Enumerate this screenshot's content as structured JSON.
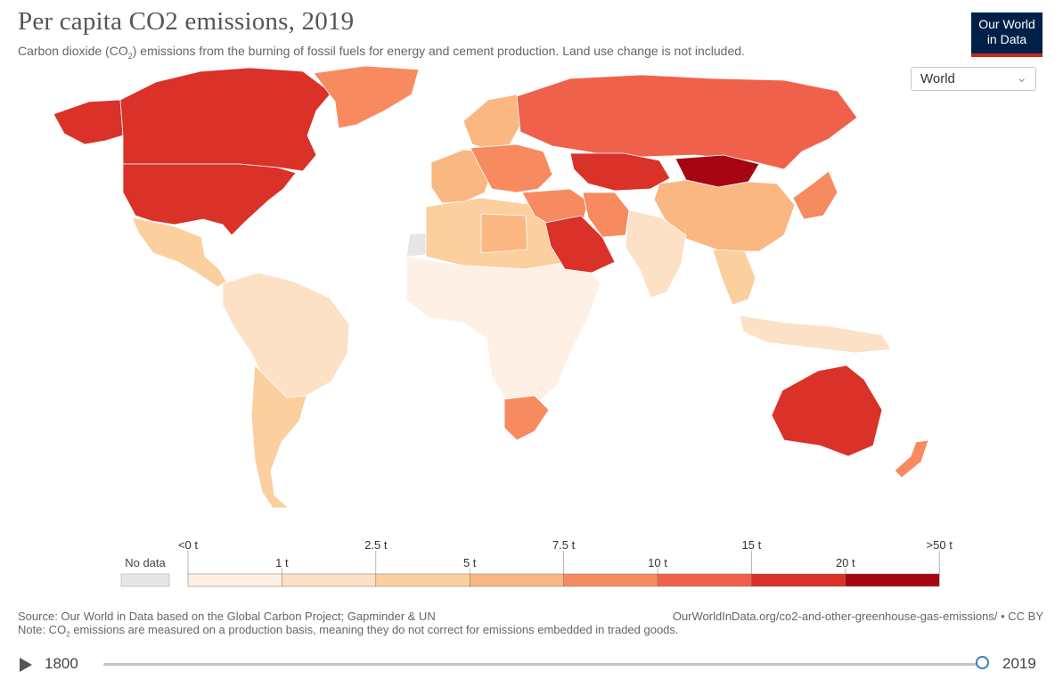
{
  "header": {
    "title": "Per capita CO2 emissions, 2019",
    "subtitle_pre": "Carbon dioxide (CO",
    "subtitle_sub": "2",
    "subtitle_post": ") emissions from the burning of fossil fuels for energy and cement production. Land use change is not included.",
    "logo_line1": "Our World",
    "logo_line2": "in Data",
    "region_selected": "World"
  },
  "colors": {
    "no_data": "#e6e6e6",
    "bins": [
      "#fef0e4",
      "#fde1c6",
      "#fccf9f",
      "#fbb781",
      "#f88a60",
      "#f0614c",
      "#da3128",
      "#a60612"
    ]
  },
  "legend": {
    "no_data_label": "No data",
    "upper_labels": [
      "<0 t",
      "2.5 t",
      "7.5 t",
      "15 t",
      ">50 t"
    ],
    "lower_labels": [
      "1 t",
      "5 t",
      "10 t",
      "20 t"
    ]
  },
  "map_regions": [
    {
      "name": "canada",
      "bin": 6
    },
    {
      "name": "usa",
      "bin": 6
    },
    {
      "name": "alaska",
      "bin": 6
    },
    {
      "name": "greenland",
      "bin": 4
    },
    {
      "name": "mexico-central-america",
      "bin": 2
    },
    {
      "name": "south-america-north",
      "bin": 1
    },
    {
      "name": "south-america-south",
      "bin": 2
    },
    {
      "name": "europe-west",
      "bin": 3
    },
    {
      "name": "scandinavia",
      "bin": 3
    },
    {
      "name": "europe-central",
      "bin": 4
    },
    {
      "name": "russia",
      "bin": 5
    },
    {
      "name": "kazakhstan",
      "bin": 6
    },
    {
      "name": "mongolia",
      "bin": 7
    },
    {
      "name": "china",
      "bin": 3
    },
    {
      "name": "north-africa",
      "bin": 2
    },
    {
      "name": "libya",
      "bin": 3
    },
    {
      "name": "africa-sub-sahara",
      "bin": 0
    },
    {
      "name": "south-africa",
      "bin": 4
    },
    {
      "name": "middle-east",
      "bin": 4
    },
    {
      "name": "saudi-arabia",
      "bin": 6
    },
    {
      "name": "iran",
      "bin": 4
    },
    {
      "name": "india",
      "bin": 1
    },
    {
      "name": "southeast-asia",
      "bin": 2
    },
    {
      "name": "indonesia",
      "bin": 1
    },
    {
      "name": "japan-korea",
      "bin": 4
    },
    {
      "name": "australia",
      "bin": 6
    },
    {
      "name": "new-zealand",
      "bin": 4
    },
    {
      "name": "western-sahara",
      "bin": -1
    }
  ],
  "footer": {
    "source": "Source: Our World in Data based on the Global Carbon Project; Gapminder & UN",
    "note_pre": "Note: CO",
    "note_sub": "2",
    "note_post": " emissions are measured on a production basis, meaning they do not correct for emissions embedded in traded goods.",
    "credit": "OurWorldInData.org/co2-and-other-greenhouse-gas-emissions/ • CC BY"
  },
  "timeline": {
    "start_year": "1800",
    "end_year": "2019",
    "value": 2019
  }
}
